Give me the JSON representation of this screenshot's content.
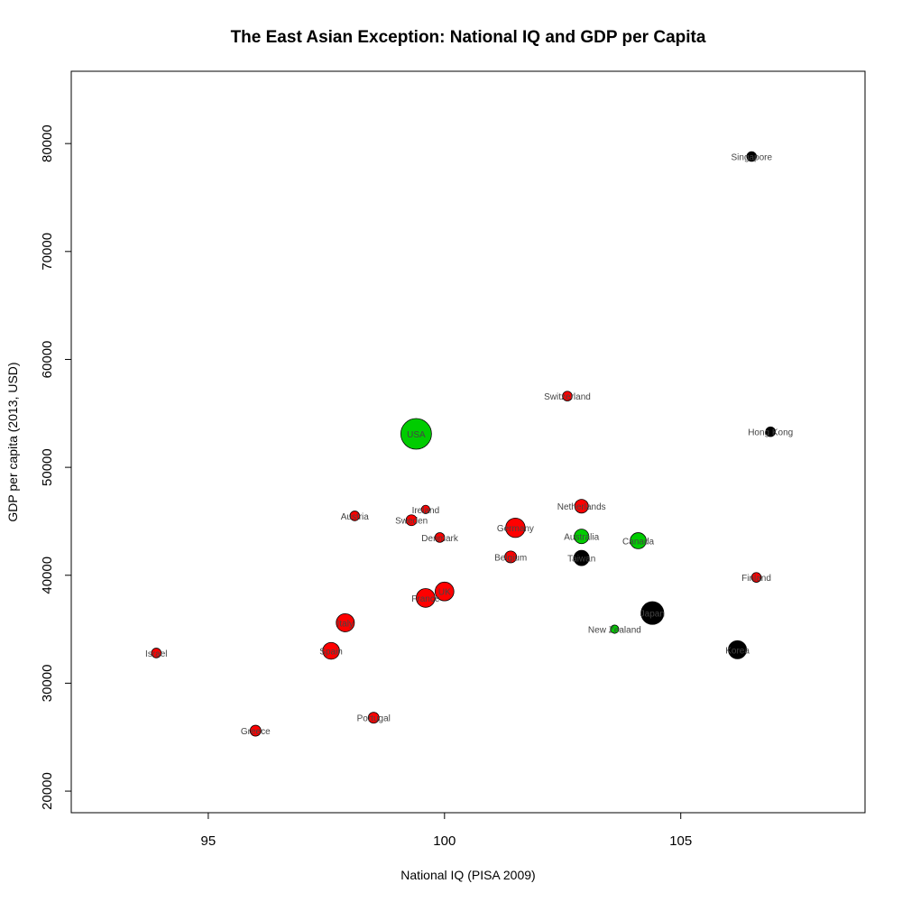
{
  "chart_data": {
    "type": "scatter",
    "title": "The East Asian Exception: National IQ and GDP per Capita",
    "xlabel": "National IQ (PISA 2009)",
    "ylabel": "GDP per capita (2013, USD)",
    "xlim": [
      92.1,
      108.9
    ],
    "ylim": [
      18000,
      86700
    ],
    "x_ticks": [
      95,
      100,
      105
    ],
    "y_ticks": [
      20000,
      30000,
      40000,
      50000,
      60000,
      70000,
      80000
    ],
    "grid": false,
    "colors": {
      "europe": "#ff0000",
      "anglo": "#00cc00",
      "east_asia": "#000000"
    },
    "points": [
      {
        "label": "Singapore",
        "x": 106.5,
        "y": 78800,
        "size": 0.4,
        "color": "#000000"
      },
      {
        "label": "Hong Kong",
        "x": 106.9,
        "y": 53300,
        "size": 0.4,
        "color": "#000000"
      },
      {
        "label": "Switzerland",
        "x": 102.6,
        "y": 56600,
        "size": 0.4,
        "color": "#ff0000"
      },
      {
        "label": "USA",
        "x": 99.4,
        "y": 53100,
        "size": 4.0,
        "color": "#00cc00"
      },
      {
        "label": "Austria",
        "x": 98.1,
        "y": 45500,
        "size": 0.4,
        "color": "#ff0000"
      },
      {
        "label": "Ireland",
        "x": 99.6,
        "y": 46100,
        "size": 0.3,
        "color": "#ff0000"
      },
      {
        "label": "Sweden",
        "x": 99.3,
        "y": 45100,
        "size": 0.5,
        "color": "#ff0000"
      },
      {
        "label": "Denmark",
        "x": 99.9,
        "y": 43500,
        "size": 0.4,
        "color": "#ff0000"
      },
      {
        "label": "Germany",
        "x": 101.5,
        "y": 44400,
        "size": 1.6,
        "color": "#ff0000"
      },
      {
        "label": "Netherlands",
        "x": 102.9,
        "y": 46400,
        "size": 0.8,
        "color": "#ff0000"
      },
      {
        "label": "Australia",
        "x": 102.9,
        "y": 43600,
        "size": 0.9,
        "color": "#00cc00"
      },
      {
        "label": "Canada",
        "x": 104.1,
        "y": 43200,
        "size": 1.1,
        "color": "#00cc00"
      },
      {
        "label": "Belgium",
        "x": 101.4,
        "y": 41700,
        "size": 0.6,
        "color": "#ff0000"
      },
      {
        "label": "Taiwan",
        "x": 102.9,
        "y": 41600,
        "size": 1.0,
        "color": "#000000"
      },
      {
        "label": "Finland",
        "x": 106.6,
        "y": 39800,
        "size": 0.4,
        "color": "#ff0000"
      },
      {
        "label": "UK",
        "x": 100.0,
        "y": 38500,
        "size": 1.5,
        "color": "#ff0000"
      },
      {
        "label": "France",
        "x": 99.6,
        "y": 37900,
        "size": 1.5,
        "color": "#ff0000"
      },
      {
        "label": "Japan",
        "x": 104.4,
        "y": 36500,
        "size": 2.2,
        "color": "#000000"
      },
      {
        "label": "New Zealand",
        "x": 103.6,
        "y": 35000,
        "size": 0.3,
        "color": "#00cc00"
      },
      {
        "label": "Italy",
        "x": 97.9,
        "y": 35600,
        "size": 1.4,
        "color": "#ff0000"
      },
      {
        "label": "Spain",
        "x": 97.6,
        "y": 33000,
        "size": 1.2,
        "color": "#ff0000"
      },
      {
        "label": "Korea",
        "x": 106.2,
        "y": 33100,
        "size": 1.4,
        "color": "#000000"
      },
      {
        "label": "Israel",
        "x": 93.9,
        "y": 32800,
        "size": 0.4,
        "color": "#ff0000"
      },
      {
        "label": "Portugal",
        "x": 98.5,
        "y": 26800,
        "size": 0.5,
        "color": "#ff0000"
      },
      {
        "label": "Greece",
        "x": 96.0,
        "y": 25600,
        "size": 0.5,
        "color": "#ff0000"
      }
    ]
  }
}
